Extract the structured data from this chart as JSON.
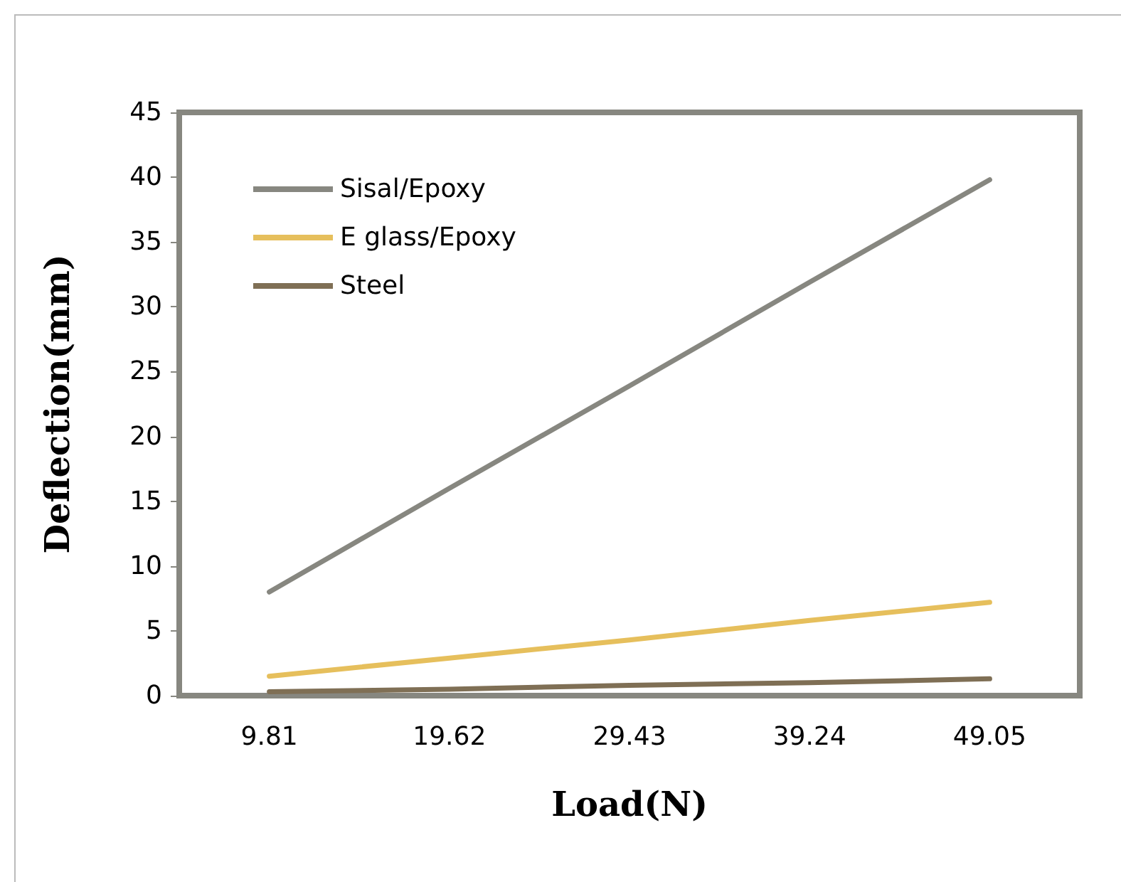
{
  "chart_data": {
    "type": "line",
    "xlabel": "Load(N)",
    "ylabel": "Deflection(mm)",
    "categories": [
      "9.81",
      "19.62",
      "29.43",
      "39.24",
      "49.05"
    ],
    "series": [
      {
        "name": "Sisal/Epoxy",
        "color": "#878780",
        "values": [
          8,
          16,
          23.9,
          31.9,
          39.8
        ]
      },
      {
        "name": "E glass/Epoxy",
        "color": "#e6bf5c",
        "values": [
          1.5,
          2.9,
          4.3,
          5.8,
          7.2
        ]
      },
      {
        "name": "Steel",
        "color": "#7f6f55",
        "values": [
          0.3,
          0.5,
          0.8,
          1.0,
          1.3
        ]
      }
    ],
    "ylim": [
      0,
      45
    ],
    "yticks": [
      0,
      5,
      10,
      15,
      20,
      25,
      30,
      35,
      40,
      45
    ],
    "grid": false,
    "legend": "top left",
    "marker": "none",
    "line_style": "solid"
  }
}
